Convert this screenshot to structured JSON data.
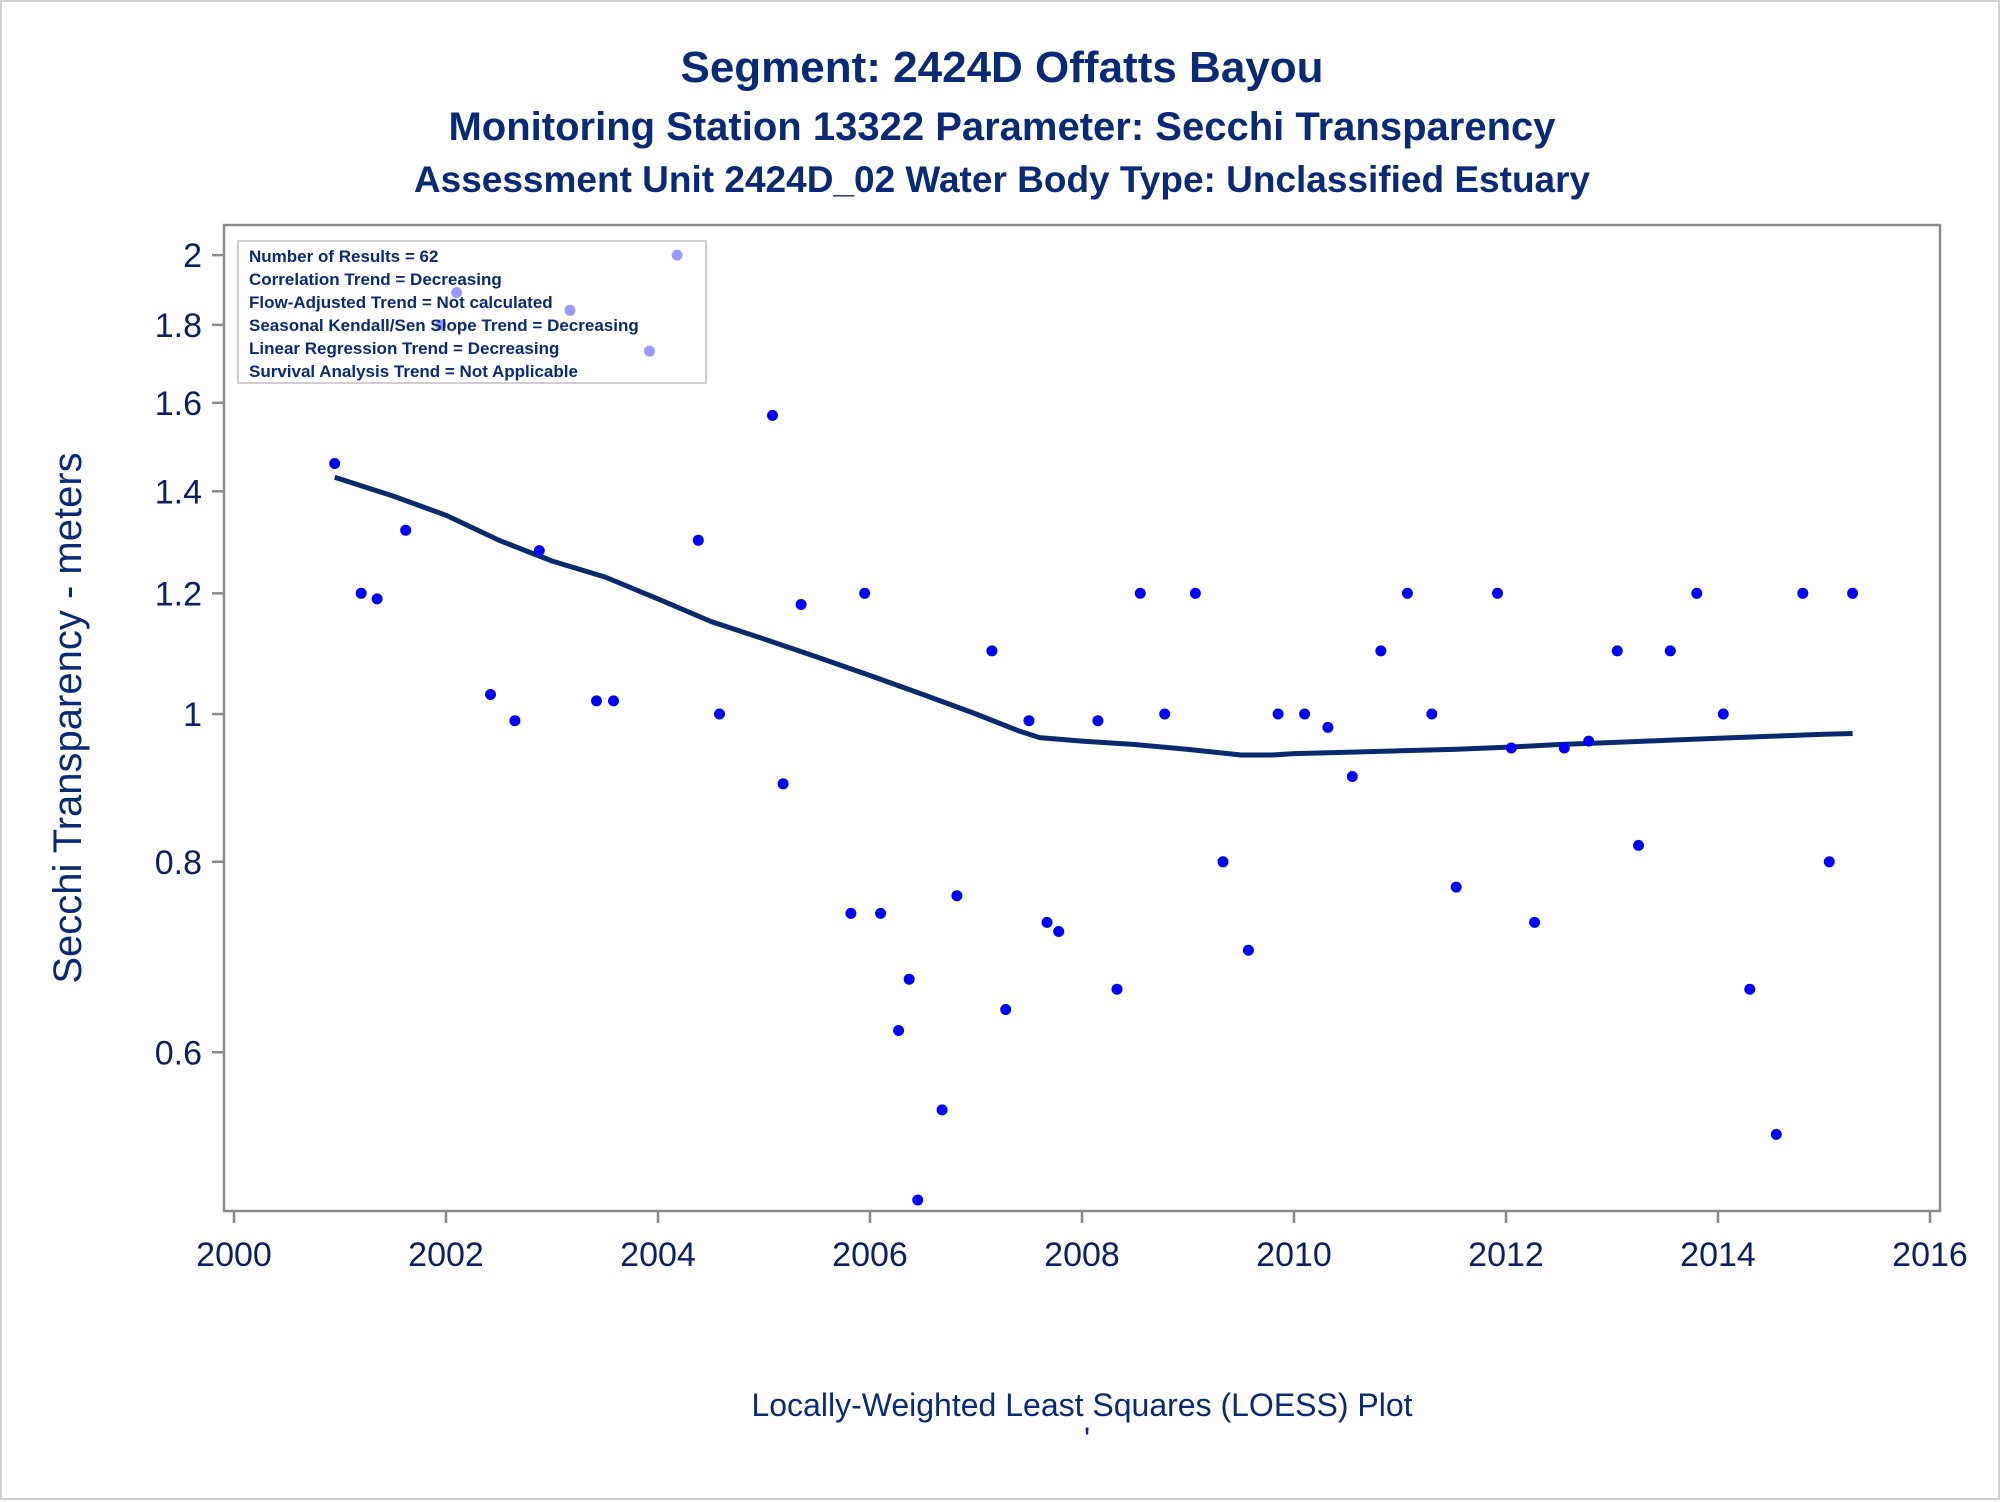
{
  "titles": {
    "line1": "Segment: 2424D  Offatts Bayou",
    "line2": "Monitoring Station 13322 Parameter: Secchi Transparency",
    "line3": "Assessment Unit 2424D_02   Water Body Type: Unclassified Estuary"
  },
  "footnote": {
    "text": "Locally-Weighted Least Squares (LOESS) Plot",
    "mark": "'"
  },
  "stats_box": {
    "lines": [
      "Number of Results = 62",
      "Correlation Trend = Decreasing",
      "Flow-Adjusted Trend = Not calculated",
      "Seasonal Kendall/Sen Slope Trend = Decreasing",
      "Linear Regression Trend = Decreasing",
      "Survival Analysis Trend = Not Applicable"
    ]
  },
  "colors": {
    "points": "#0000ff",
    "loess": "#0a2a6e",
    "text": "#0a2a78",
    "axis": "#8a8a8a"
  },
  "chart_data": {
    "type": "scatter",
    "ylabel": "Secchi Transparency - meters",
    "xlabel": "",
    "xlim": [
      2000,
      2016
    ],
    "ylim": [
      0.48,
      2.04
    ],
    "yscale": "log",
    "xticks": [
      2000,
      2002,
      2004,
      2006,
      2008,
      2010,
      2012,
      2014,
      2016
    ],
    "yticks": [
      0.6,
      0.8,
      1,
      1.2,
      1.4,
      1.6,
      1.8,
      2
    ],
    "ytick_labels": [
      "0.6",
      "0.8",
      "1",
      "1.2",
      "1.4",
      "1.6",
      "1.8",
      "2"
    ],
    "legend": "top-left",
    "series": [
      {
        "kind": "points",
        "x": [
          2000.95,
          2001.2,
          2001.35,
          2001.62,
          2001.95,
          2002.1,
          2002.42,
          2002.65,
          2002.88,
          2003.17,
          2003.42,
          2003.58,
          2003.92,
          2004.18,
          2004.38,
          2004.58,
          2005.08,
          2005.18,
          2005.35,
          2005.82,
          2005.95,
          2006.1,
          2006.27,
          2006.37,
          2006.45,
          2006.68,
          2006.82,
          2007.15,
          2007.28,
          2007.5,
          2007.67,
          2007.78,
          2008.15,
          2008.33,
          2008.55,
          2008.78,
          2009.07,
          2009.33,
          2009.57,
          2009.85,
          2010.1,
          2010.32,
          2010.55,
          2010.82,
          2011.07,
          2011.3,
          2011.53,
          2011.92,
          2012.05,
          2012.27,
          2012.55,
          2012.78,
          2013.05,
          2013.25,
          2013.55,
          2013.8,
          2014.05,
          2014.3,
          2014.55,
          2014.8,
          2015.05,
          2015.27
        ],
        "y": [
          1.46,
          1.2,
          1.19,
          1.32,
          1.8,
          1.89,
          1.03,
          0.99,
          1.28,
          1.84,
          1.02,
          1.02,
          1.73,
          2.0,
          1.3,
          1.0,
          1.57,
          0.9,
          1.18,
          0.74,
          1.2,
          0.74,
          0.62,
          0.67,
          0.48,
          0.55,
          0.76,
          1.1,
          0.64,
          0.99,
          0.73,
          0.72,
          0.99,
          0.66,
          1.2,
          1.0,
          1.2,
          0.8,
          0.7,
          1.0,
          1.0,
          0.98,
          0.91,
          1.1,
          1.2,
          1.0,
          0.77,
          1.2,
          0.95,
          0.73,
          0.95,
          0.96,
          1.1,
          0.82,
          1.1,
          1.2,
          1.0,
          0.66,
          0.53,
          1.2,
          0.8,
          1.2
        ]
      },
      {
        "kind": "loess",
        "x": [
          2000.95,
          2001.5,
          2002.0,
          2002.5,
          2003.0,
          2003.5,
          2004.0,
          2004.5,
          2005.0,
          2005.5,
          2006.0,
          2006.5,
          2007.0,
          2007.4,
          2007.6,
          2008.0,
          2008.5,
          2009.0,
          2009.5,
          2009.8,
          2010.0,
          2010.5,
          2011.0,
          2011.5,
          2012.0,
          2012.5,
          2013.0,
          2013.5,
          2014.0,
          2014.5,
          2015.0,
          2015.27
        ],
        "y": [
          1.43,
          1.39,
          1.35,
          1.3,
          1.26,
          1.23,
          1.19,
          1.15,
          1.12,
          1.09,
          1.06,
          1.03,
          1.0,
          0.975,
          0.965,
          0.96,
          0.955,
          0.948,
          0.94,
          0.94,
          0.942,
          0.944,
          0.946,
          0.948,
          0.951,
          0.955,
          0.958,
          0.961,
          0.964,
          0.967,
          0.97,
          0.971
        ]
      }
    ]
  }
}
